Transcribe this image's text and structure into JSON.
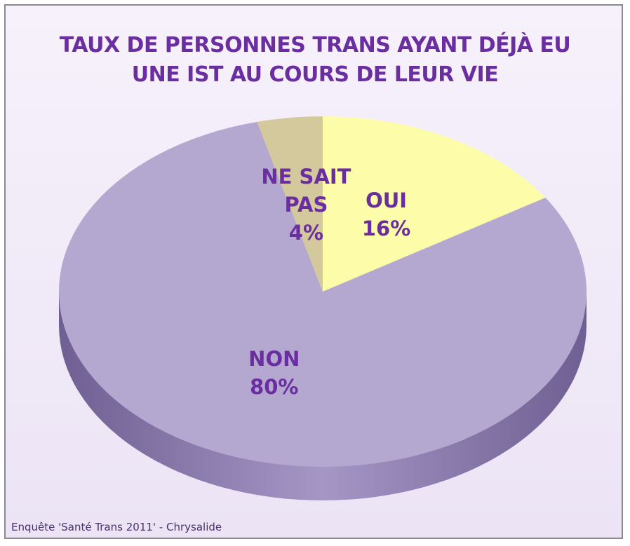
{
  "chart_data": {
    "type": "pie",
    "title": "TAUX DE PERSONNES TRANS AYANT DÉJÀ EU UNE IST AU COURS DE LEUR VIE",
    "categories": [
      "OUI",
      "NON",
      "NE SAIT PAS"
    ],
    "values": [
      16,
      80,
      4
    ],
    "value_labels": [
      "16%",
      "80%",
      "4%"
    ],
    "colors": [
      "#fdfca8",
      "#b4a8d1",
      "#d3c99c"
    ],
    "source": "Enquête 'Santé Trans 2011' - Chrysalide"
  }
}
